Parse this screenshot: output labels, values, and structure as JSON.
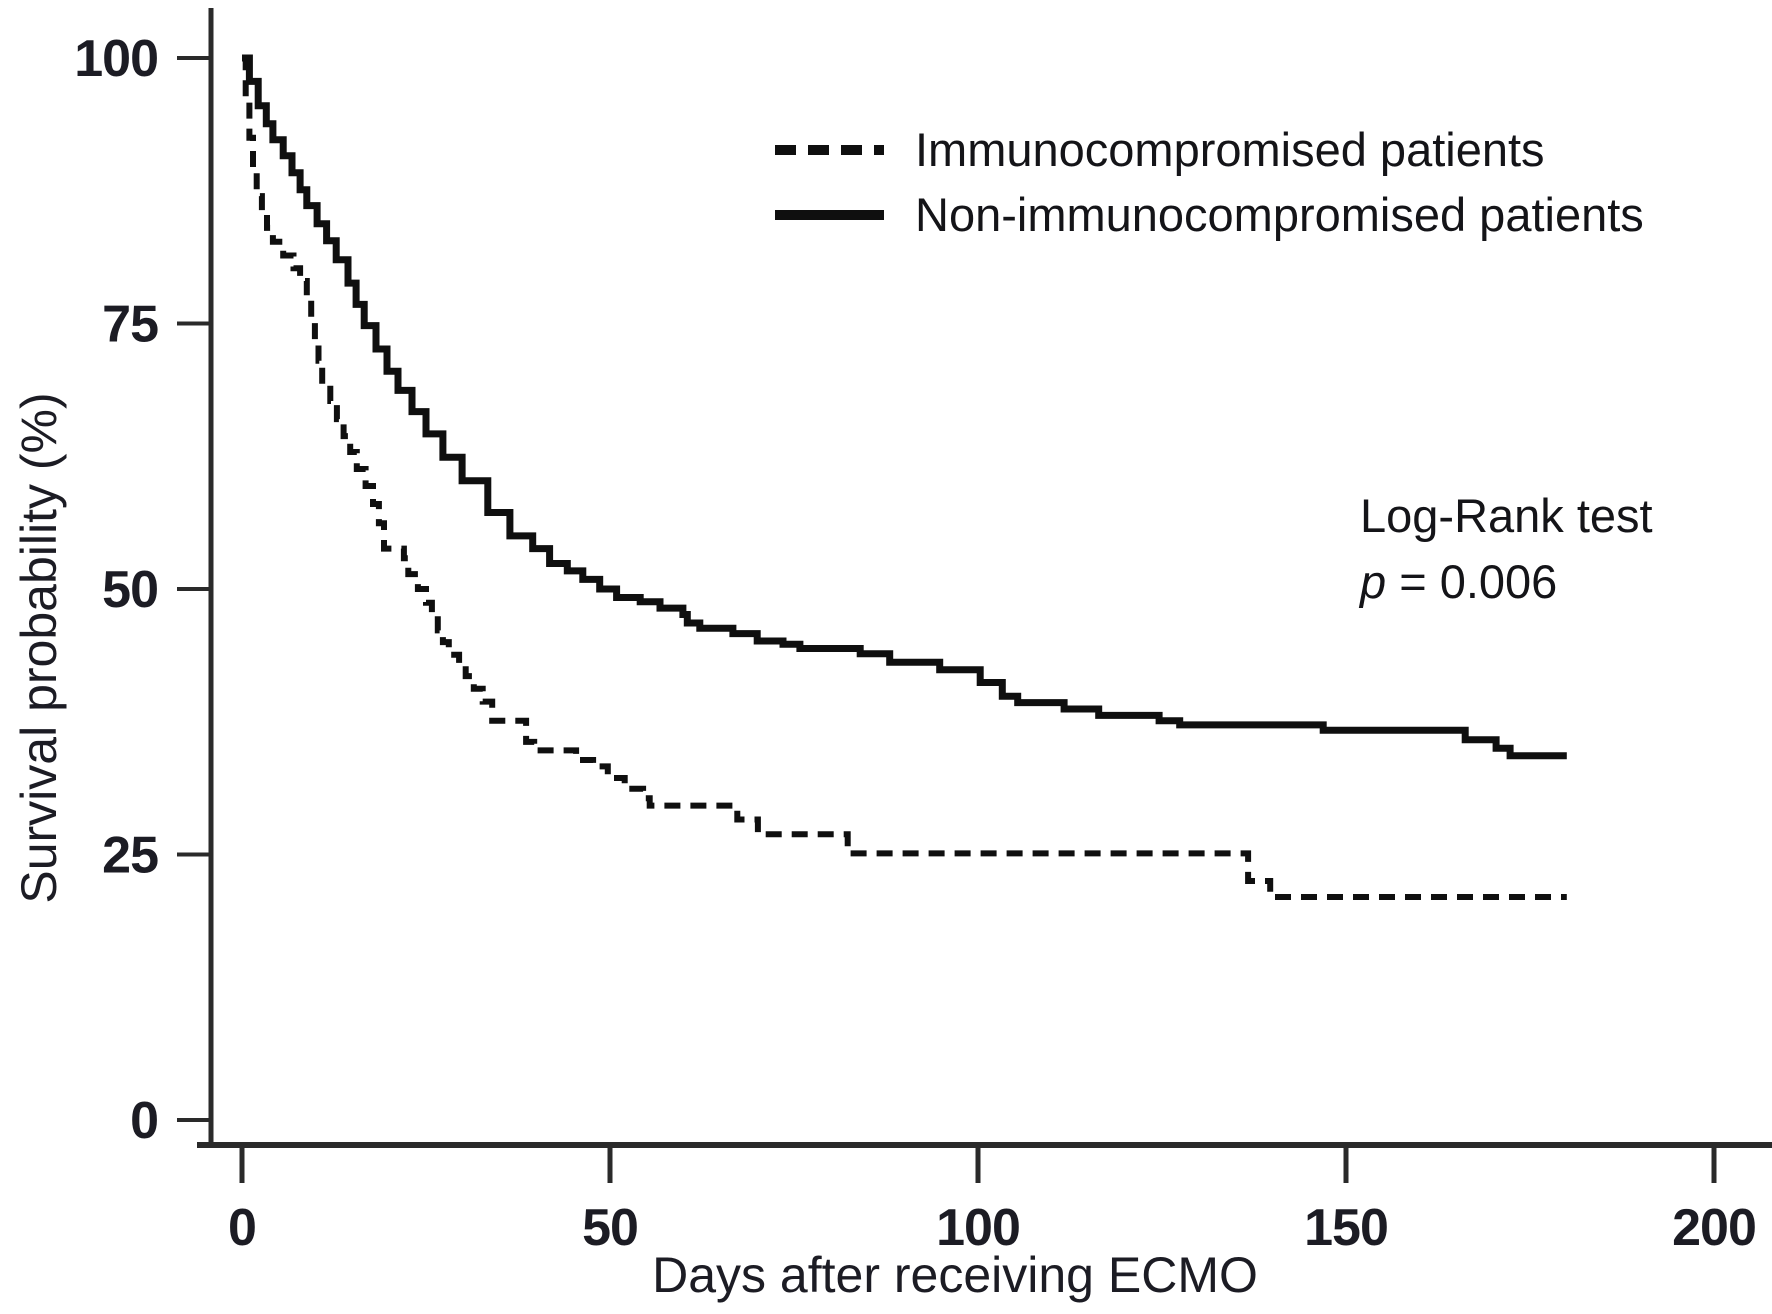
{
  "figure": {
    "background": "#ffffff",
    "text_color": "#1c1c24",
    "curve_color": "#0f0f0f",
    "axis_color": "#2a2a2a"
  },
  "chart_data": {
    "type": "line",
    "subtype": "kaplan-meier-step-curves",
    "title": "",
    "xlabel": "Days after receiving ECMO",
    "ylabel": "Survival probability (%)",
    "xlim": [
      0,
      200
    ],
    "ylim": [
      0,
      100
    ],
    "x_ticks": [
      0,
      50,
      100,
      150,
      200
    ],
    "y_ticks": [
      100,
      75,
      50,
      25,
      0
    ],
    "grid": false,
    "legend_position": "top-center",
    "annotation": {
      "line1": "Log-Rank test",
      "p_symbol": "p",
      "p_rest": " = 0.006"
    },
    "series": [
      {
        "name": "Immunocompromised patients",
        "style": "dashed",
        "points": [
          [
            0,
            100
          ],
          [
            0.5,
            96
          ],
          [
            1,
            92.5
          ],
          [
            1.5,
            89.5
          ],
          [
            2,
            87
          ],
          [
            2.7,
            85.3
          ],
          [
            3.4,
            84
          ],
          [
            4.2,
            82.7
          ],
          [
            5.6,
            81.4
          ],
          [
            7,
            80.2
          ],
          [
            7.9,
            79
          ],
          [
            8.8,
            77.2
          ],
          [
            9.4,
            75.3
          ],
          [
            9.9,
            73.4
          ],
          [
            10.4,
            71.5
          ],
          [
            10.9,
            69.6
          ],
          [
            12,
            67.7
          ],
          [
            12.9,
            66
          ],
          [
            13.8,
            64.4
          ],
          [
            14.7,
            62.9
          ],
          [
            15.6,
            61.3
          ],
          [
            16.8,
            59.7
          ],
          [
            17.8,
            58
          ],
          [
            18.6,
            56.2
          ],
          [
            19.3,
            53.8
          ],
          [
            22,
            52.9
          ],
          [
            22.6,
            51.4
          ],
          [
            23.9,
            50
          ],
          [
            25,
            48.7
          ],
          [
            25.8,
            47.5
          ],
          [
            26.6,
            46.1
          ],
          [
            27.3,
            45
          ],
          [
            28.1,
            43.8
          ],
          [
            29.5,
            42.8
          ],
          [
            30.4,
            41.8
          ],
          [
            31.5,
            40.6
          ],
          [
            32.7,
            39.4
          ],
          [
            34,
            37.6
          ],
          [
            38.6,
            35.6
          ],
          [
            39.7,
            34.8
          ],
          [
            45.4,
            33.9
          ],
          [
            47.7,
            33.3
          ],
          [
            49.7,
            32.2
          ],
          [
            52,
            31.2
          ],
          [
            54.5,
            30.3
          ],
          [
            55.4,
            29.6
          ],
          [
            67.3,
            28.3
          ],
          [
            70.1,
            26.9
          ],
          [
            82.3,
            25.1
          ],
          [
            136.7,
            22.5
          ],
          [
            139.7,
            21
          ],
          [
            180,
            21
          ]
        ]
      },
      {
        "name": "Non-immunocompromised patients",
        "style": "solid",
        "points": [
          [
            0,
            100
          ],
          [
            1,
            97.8
          ],
          [
            2.2,
            95.5
          ],
          [
            3.3,
            93.8
          ],
          [
            4.2,
            92.3
          ],
          [
            5.6,
            90.8
          ],
          [
            6.8,
            89.2
          ],
          [
            7.9,
            87.6
          ],
          [
            8.8,
            86.1
          ],
          [
            10.2,
            84.4
          ],
          [
            11.5,
            82.8
          ],
          [
            12.8,
            81
          ],
          [
            14.4,
            78.8
          ],
          [
            15.5,
            76.8
          ],
          [
            16.6,
            74.8
          ],
          [
            18.2,
            72.6
          ],
          [
            19.7,
            70.5
          ],
          [
            21.2,
            68.7
          ],
          [
            23.1,
            66.7
          ],
          [
            25,
            64.6
          ],
          [
            27.3,
            62.4
          ],
          [
            29.9,
            60.2
          ],
          [
            33.4,
            57.2
          ],
          [
            36.4,
            55
          ],
          [
            39.5,
            53.8
          ],
          [
            41.8,
            52.4
          ],
          [
            44.2,
            51.7
          ],
          [
            46.3,
            50.9
          ],
          [
            48.6,
            50
          ],
          [
            50.9,
            49.2
          ],
          [
            54.1,
            48.8
          ],
          [
            56.8,
            48.2
          ],
          [
            59.9,
            47.6
          ],
          [
            60.5,
            46.8
          ],
          [
            62.2,
            46.3
          ],
          [
            66.7,
            45.8
          ],
          [
            70,
            45.1
          ],
          [
            73.5,
            44.8
          ],
          [
            75.8,
            44.4
          ],
          [
            84,
            43.9
          ],
          [
            88,
            43.1
          ],
          [
            94.8,
            42.4
          ],
          [
            100.3,
            41.2
          ],
          [
            103.3,
            39.9
          ],
          [
            105.4,
            39.3
          ],
          [
            111.7,
            38.7
          ],
          [
            116.4,
            38.1
          ],
          [
            124.6,
            37.6
          ],
          [
            127.4,
            37.2
          ],
          [
            146.9,
            36.7
          ],
          [
            166.2,
            35.8
          ],
          [
            170.4,
            35
          ],
          [
            172.3,
            34.3
          ],
          [
            180,
            34.3
          ]
        ]
      }
    ]
  }
}
